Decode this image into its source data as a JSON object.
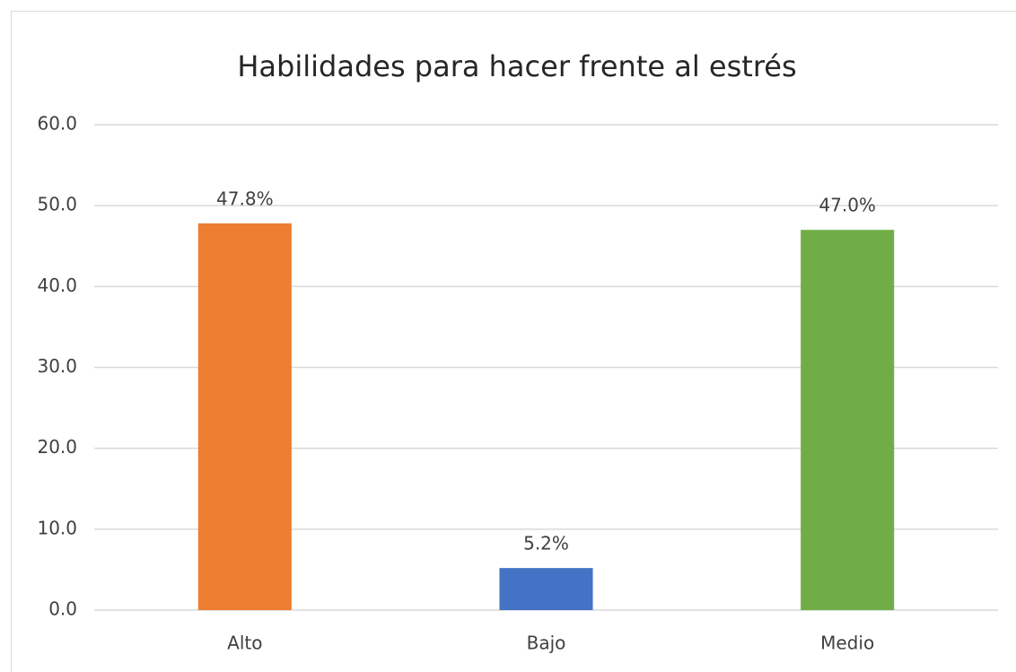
{
  "chart_data": {
    "type": "bar",
    "title": "Habilidades para hacer frente al estrés",
    "categories": [
      "Alto",
      "Bajo",
      "Medio"
    ],
    "values": [
      47.8,
      5.2,
      47.0
    ],
    "value_labels": [
      "47.8%",
      "5.2%",
      "47.0%"
    ],
    "colors": [
      "#ed7d31",
      "#4472c4",
      "#70ad47"
    ],
    "ylim": [
      0,
      60
    ],
    "yticks": [
      {
        "value": 0,
        "label": "0.0"
      },
      {
        "value": 10,
        "label": "10.0"
      },
      {
        "value": 20,
        "label": "20.0"
      },
      {
        "value": 30,
        "label": "30.0"
      },
      {
        "value": 40,
        "label": "40.0"
      },
      {
        "value": 50,
        "label": "50.0"
      },
      {
        "value": 60,
        "label": "60.0"
      }
    ],
    "grid": true
  }
}
